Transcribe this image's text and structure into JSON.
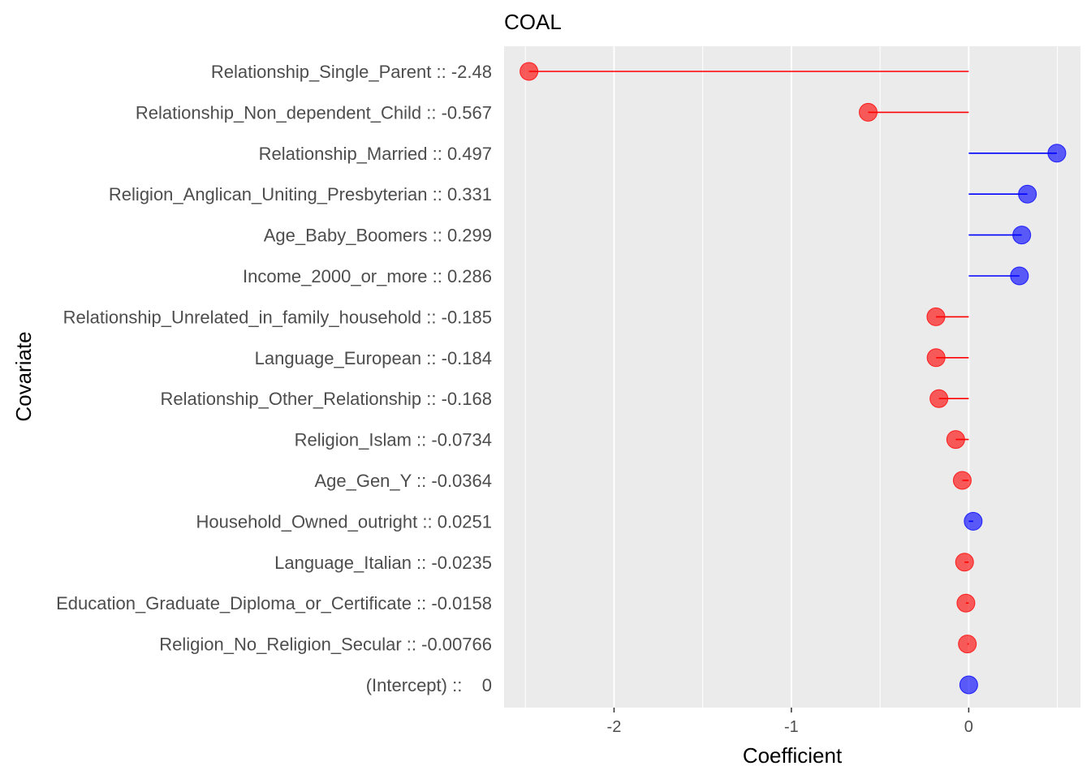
{
  "chart_data": {
    "type": "lollipop",
    "title": "COAL",
    "xlabel": "Coefficient",
    "ylabel": "Covariate",
    "xlim": [
      -2.62,
      0.63
    ],
    "xticks": [
      -2,
      -1,
      0
    ],
    "xtick_labels": [
      "-2",
      "-1",
      "0"
    ],
    "grid": true,
    "legend": "none",
    "colors": {
      "positive": "#0000ff",
      "negative": "#ff0000",
      "panel": "#ebebeb",
      "grid": "#ffffff"
    },
    "points": [
      {
        "label": "Relationship_Single_Parent :: -2.48",
        "value": -2.48
      },
      {
        "label": "Relationship_Non_dependent_Child :: -0.567",
        "value": -0.567
      },
      {
        "label": "Relationship_Married :: 0.497",
        "value": 0.497
      },
      {
        "label": "Religion_Anglican_Uniting_Presbyterian :: 0.331",
        "value": 0.331
      },
      {
        "label": "Age_Baby_Boomers :: 0.299",
        "value": 0.299
      },
      {
        "label": "Income_2000_or_more :: 0.286",
        "value": 0.286
      },
      {
        "label": "Relationship_Unrelated_in_family_household :: -0.185",
        "value": -0.185
      },
      {
        "label": "Language_European :: -0.184",
        "value": -0.184
      },
      {
        "label": "Relationship_Other_Relationship :: -0.168",
        "value": -0.168
      },
      {
        "label": "Religion_Islam :: -0.0734",
        "value": -0.0734
      },
      {
        "label": "Age_Gen_Y :: -0.0364",
        "value": -0.0364
      },
      {
        "label": "Household_Owned_outright :: 0.0251",
        "value": 0.0251
      },
      {
        "label": "Language_Italian :: -0.0235",
        "value": -0.0235
      },
      {
        "label": "Education_Graduate_Diploma_or_Certificate :: -0.0158",
        "value": -0.0158
      },
      {
        "label": "Religion_No_Religion_Secular :: -0.00766",
        "value": -0.00766
      },
      {
        "label": "(Intercept) ::    0",
        "value": 0
      }
    ]
  }
}
